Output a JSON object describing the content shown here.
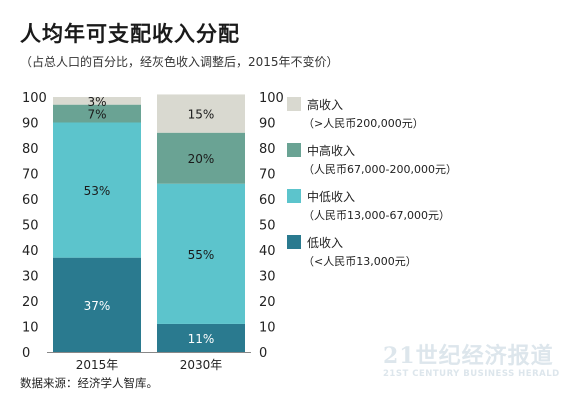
{
  "title": "人均年可支配收入分配",
  "subtitle": "（占总人口的百分比，经灰色收入调整后，2015年不变价）",
  "footnote": "数据来源：经济学人智库。",
  "watermark": {
    "main": "21世纪经济报道",
    "sub": "21ST CENTURY BUSINESS HERALD"
  },
  "chart_data": {
    "type": "bar",
    "stacked": true,
    "categories": [
      "2015年",
      "2030年"
    ],
    "ylim": [
      0,
      100
    ],
    "yticks": [
      0,
      10,
      20,
      30,
      40,
      50,
      60,
      70,
      80,
      90,
      100
    ],
    "y_axis_both_sides": true,
    "grid": false,
    "legend_position": "right",
    "series": [
      {
        "name": "低收入",
        "range": "（<人民币13,000元）",
        "values": [
          37,
          11
        ],
        "labels": [
          "37%",
          "11%"
        ],
        "color": "#2a7a8f",
        "label_color": "#ffffff"
      },
      {
        "name": "中低收入",
        "range": "（人民币13,000-67,000元）",
        "values": [
          53,
          55
        ],
        "labels": [
          "53%",
          "55%"
        ],
        "color": "#5cc4cc",
        "label_color": "#1a1a1a"
      },
      {
        "name": "中高收入",
        "range": "（人民币67,000-200,000元）",
        "values": [
          7,
          20
        ],
        "labels": [
          "7%",
          "20%"
        ],
        "color": "#6aa394",
        "label_color": "#1a1a1a"
      },
      {
        "name": "高收入",
        "range": "（>人民币200,000元）",
        "values": [
          3,
          15
        ],
        "labels": [
          "3%",
          "15%"
        ],
        "color": "#d9d9d0",
        "label_color": "#1a1a1a"
      }
    ],
    "legend_order": [
      3,
      2,
      1,
      0
    ]
  }
}
